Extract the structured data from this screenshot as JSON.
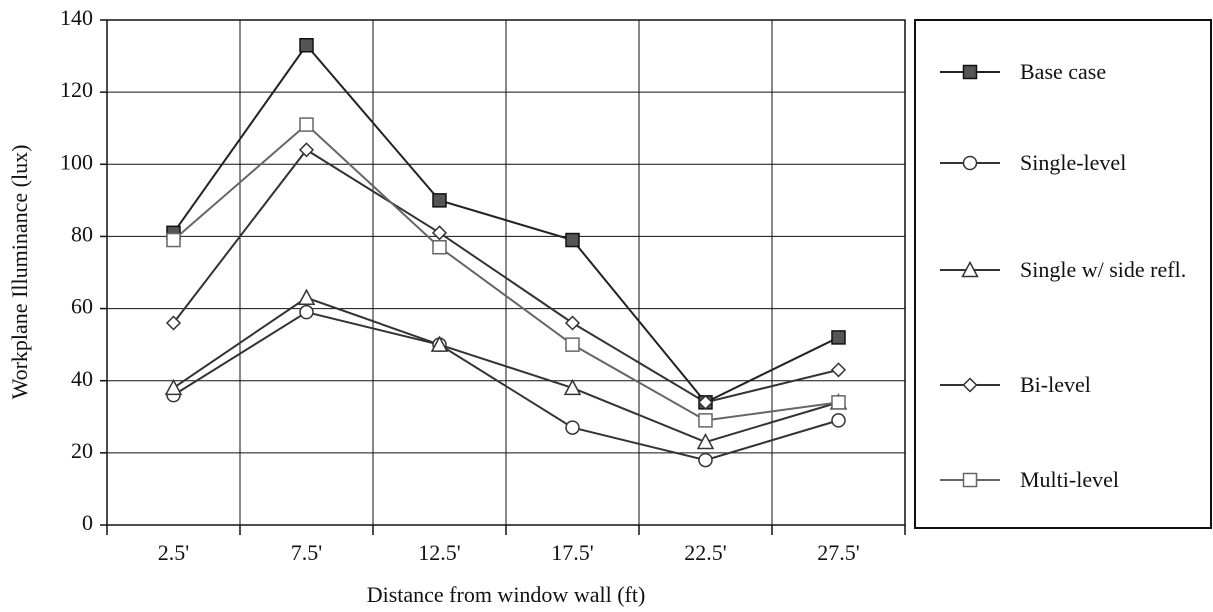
{
  "chart_data": {
    "type": "line",
    "xlabel": "Distance from window wall (ft)",
    "ylabel": "Workplane Illuminance (lux)",
    "categories": [
      "2.5'",
      "7.5'",
      "12.5'",
      "17.5'",
      "22.5'",
      "27.5'"
    ],
    "series": [
      {
        "name": "Base case",
        "color": "#222222",
        "marker": "filled-square",
        "values": [
          81,
          133,
          90,
          79,
          34,
          52
        ]
      },
      {
        "name": "Single-level",
        "color": "#333333",
        "marker": "circle",
        "values": [
          36,
          59,
          50,
          27,
          18,
          29
        ]
      },
      {
        "name": "Single w/ side refl.",
        "color": "#333333",
        "marker": "triangle",
        "values": [
          38,
          63,
          50,
          38,
          23,
          34
        ]
      },
      {
        "name": "Bi-level",
        "color": "#333333",
        "marker": "diamond",
        "values": [
          56,
          104,
          81,
          56,
          34,
          43
        ]
      },
      {
        "name": "Multi-level",
        "color": "#666666",
        "marker": "square",
        "values": [
          79,
          111,
          77,
          50,
          29,
          34
        ]
      }
    ],
    "ylim": [
      0,
      140
    ],
    "yticks": [
      0,
      20,
      40,
      60,
      80,
      100,
      120,
      140
    ],
    "grid": true,
    "legend": "right"
  }
}
